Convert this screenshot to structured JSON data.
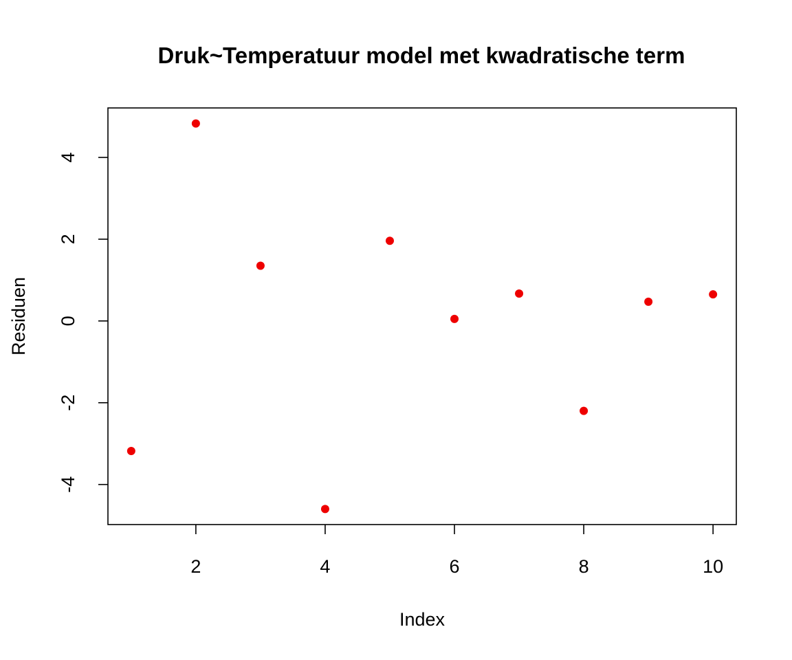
{
  "chart_data": {
    "type": "scatter",
    "title": "Druk~Temperatuur model met kwadratische term",
    "xlabel": "Index",
    "ylabel": "Residuen",
    "x": [
      1,
      2,
      3,
      4,
      5,
      6,
      7,
      8,
      9,
      10
    ],
    "y": [
      -3.18,
      4.83,
      1.35,
      -4.6,
      1.96,
      0.05,
      0.67,
      -2.2,
      0.47,
      0.65
    ],
    "xlim": [
      0.64,
      10.36
    ],
    "ylim": [
      -4.98,
      5.21
    ],
    "xticks": [
      2,
      4,
      6,
      8,
      10
    ],
    "xtick_labels": [
      "2",
      "4",
      "6",
      "8",
      "10"
    ],
    "yticks": [
      -4,
      -2,
      0,
      2,
      4
    ],
    "ytick_labels": [
      "-4",
      "-2",
      "0",
      "2",
      "4"
    ],
    "point_color": "#ee0000",
    "grid": false,
    "legend": null
  }
}
